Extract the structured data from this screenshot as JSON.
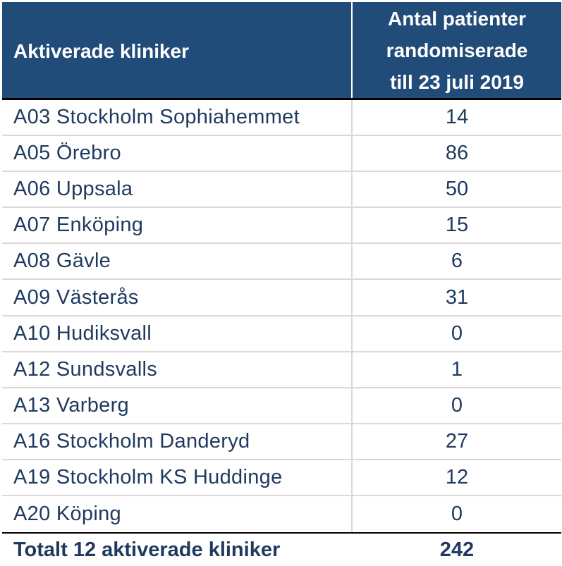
{
  "header": {
    "col1": "Aktiverade kliniker",
    "col2_line1": "Antal patienter",
    "col2_line2": "randomiserade",
    "col2_line3": "till 23 juli 2019"
  },
  "rows": [
    {
      "clinic": "A03 Stockholm Sophiahemmet",
      "count": "14"
    },
    {
      "clinic": "A05 Örebro",
      "count": "86"
    },
    {
      "clinic": "A06 Uppsala",
      "count": "50"
    },
    {
      "clinic": "A07 Enköping",
      "count": "15"
    },
    {
      "clinic": "A08 Gävle",
      "count": "6"
    },
    {
      "clinic": "A09 Västerås",
      "count": "31"
    },
    {
      "clinic": "A10 Hudiksvall",
      "count": "0"
    },
    {
      "clinic": "A12 Sundsvalls",
      "count": "1"
    },
    {
      "clinic": "A13 Varberg",
      "count": "0"
    },
    {
      "clinic": "A16 Stockholm Danderyd",
      "count": "27"
    },
    {
      "clinic": "A19 Stockholm KS Huddinge",
      "count": "12"
    },
    {
      "clinic": "A20 Köping",
      "count": "0"
    }
  ],
  "total": {
    "label": "Totalt 12 aktiverade kliniker",
    "count": "242"
  },
  "colors": {
    "header_bg": "#214b78",
    "text": "#1f3a5f",
    "grid": "#d9d9d9"
  }
}
